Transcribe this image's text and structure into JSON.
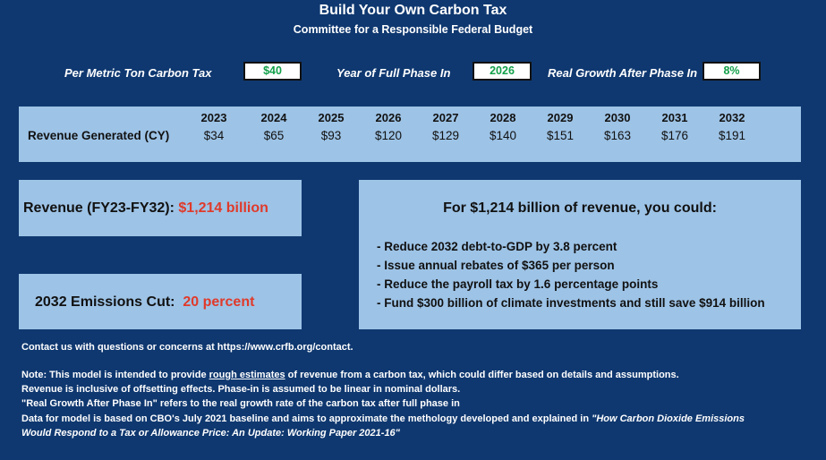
{
  "header": {
    "title": "Build Your Own Carbon Tax",
    "subtitle": "Committee for a Responsible Federal Budget"
  },
  "inputs": {
    "tax_label": "Per Metric Ton Carbon Tax",
    "tax_value": "$40",
    "year_label": "Year of Full Phase In",
    "year_value": "2026",
    "growth_label": "Real Growth After Phase In",
    "growth_value": "8%"
  },
  "revenue_table": {
    "row_label": "Revenue Generated (CY)",
    "years": [
      "2023",
      "2024",
      "2025",
      "2026",
      "2027",
      "2028",
      "2029",
      "2030",
      "2031",
      "2032"
    ],
    "values": [
      "$34",
      "$65",
      "$93",
      "$120",
      "$129",
      "$140",
      "$151",
      "$163",
      "$176",
      "$191"
    ]
  },
  "summary": {
    "revenue_label": "Revenue (FY23-FY32):",
    "revenue_value": "$1,214 billion",
    "emissions_label": "2032 Emissions Cut:",
    "emissions_value": "20 percent"
  },
  "could": {
    "title": "For $1,214 billion of revenue, you could:",
    "items": [
      "- Reduce 2032 debt-to-GDP by 3.8 percent",
      "- Issue annual rebates of $365 per person",
      "- Reduce the payroll tax by 1.6 percentage points",
      "- Fund $300 billion of climate investments and still save $914 billion"
    ]
  },
  "footer": {
    "contact": "Contact us with questions or concerns at https://www.crfb.org/contact.",
    "note_prefix": "Note: This model is intended to provide ",
    "note_underlined": "rough estimates",
    "note_suffix": " of revenue from a carbon tax, which could differ based on details and assumptions.",
    "line2": "Revenue is inclusive of offsetting effects. Phase-in is assumed to be linear in nominal dollars.",
    "line3": "\"Real Growth After Phase In\" refers to the real growth rate of the carbon tax after full phase in",
    "line4_prefix": "Data for model is based on CBO's July 2021 baseline and aims to approximate the methology developed and explained in ",
    "line4_italic": "\"How Carbon Dioxide Emissions",
    "line5_italic": "Would Respond to a Tax or Allowance Price: An Update: Working Paper 2021-16\""
  },
  "colors": {
    "background": "#0f3870",
    "panel": "#9dc3e6",
    "input_text": "#12a04a",
    "highlight": "#e03a2a"
  }
}
